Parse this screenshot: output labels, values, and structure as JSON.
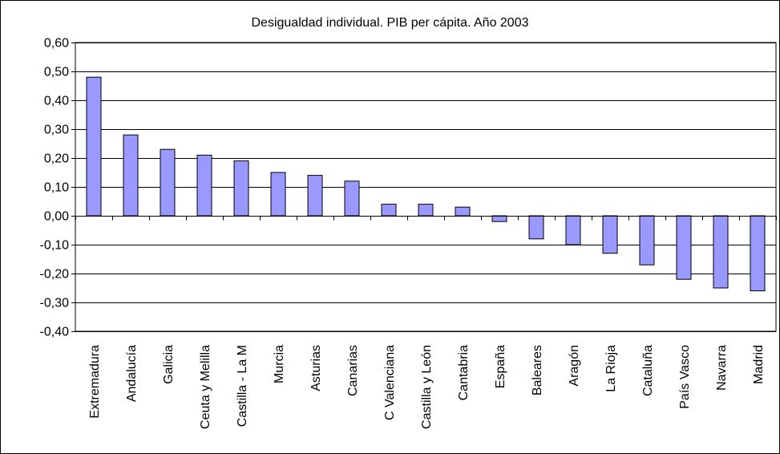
{
  "chart_data": {
    "type": "bar",
    "title": "Desigualdad individual.  PIB per cápita.  Año 2003",
    "xlabel": "",
    "ylabel": "",
    "ylim": [
      -0.4,
      0.6
    ],
    "yticks": [
      0.6,
      0.5,
      0.4,
      0.3,
      0.2,
      0.1,
      0.0,
      -0.1,
      -0.2,
      -0.3,
      -0.4
    ],
    "ytick_labels": [
      "0,60",
      "0,50",
      "0,40",
      "0,30",
      "0,20",
      "0,10",
      "0,00",
      "-0,10",
      "-0,20",
      "-0,30",
      "-0,40"
    ],
    "grid": true,
    "legend": "none",
    "bar_color": "#9999ff",
    "categories": [
      "Extremadura",
      "Andalucía",
      "Galicia",
      "Ceuta y Melilla",
      "Castilla - La M",
      "Murcia",
      "Asturias",
      "Canarias",
      "C Valenciana",
      "Castilla y León",
      "Cantabria",
      "España",
      "Baleares",
      "Aragón",
      "La Rioja",
      "Cataluña",
      "País Vasco",
      "Navarra",
      "Madrid"
    ],
    "values": [
      0.48,
      0.28,
      0.23,
      0.21,
      0.19,
      0.15,
      0.14,
      0.12,
      0.04,
      0.04,
      0.03,
      -0.02,
      -0.08,
      -0.1,
      -0.13,
      -0.17,
      -0.22,
      -0.25,
      -0.26
    ]
  }
}
